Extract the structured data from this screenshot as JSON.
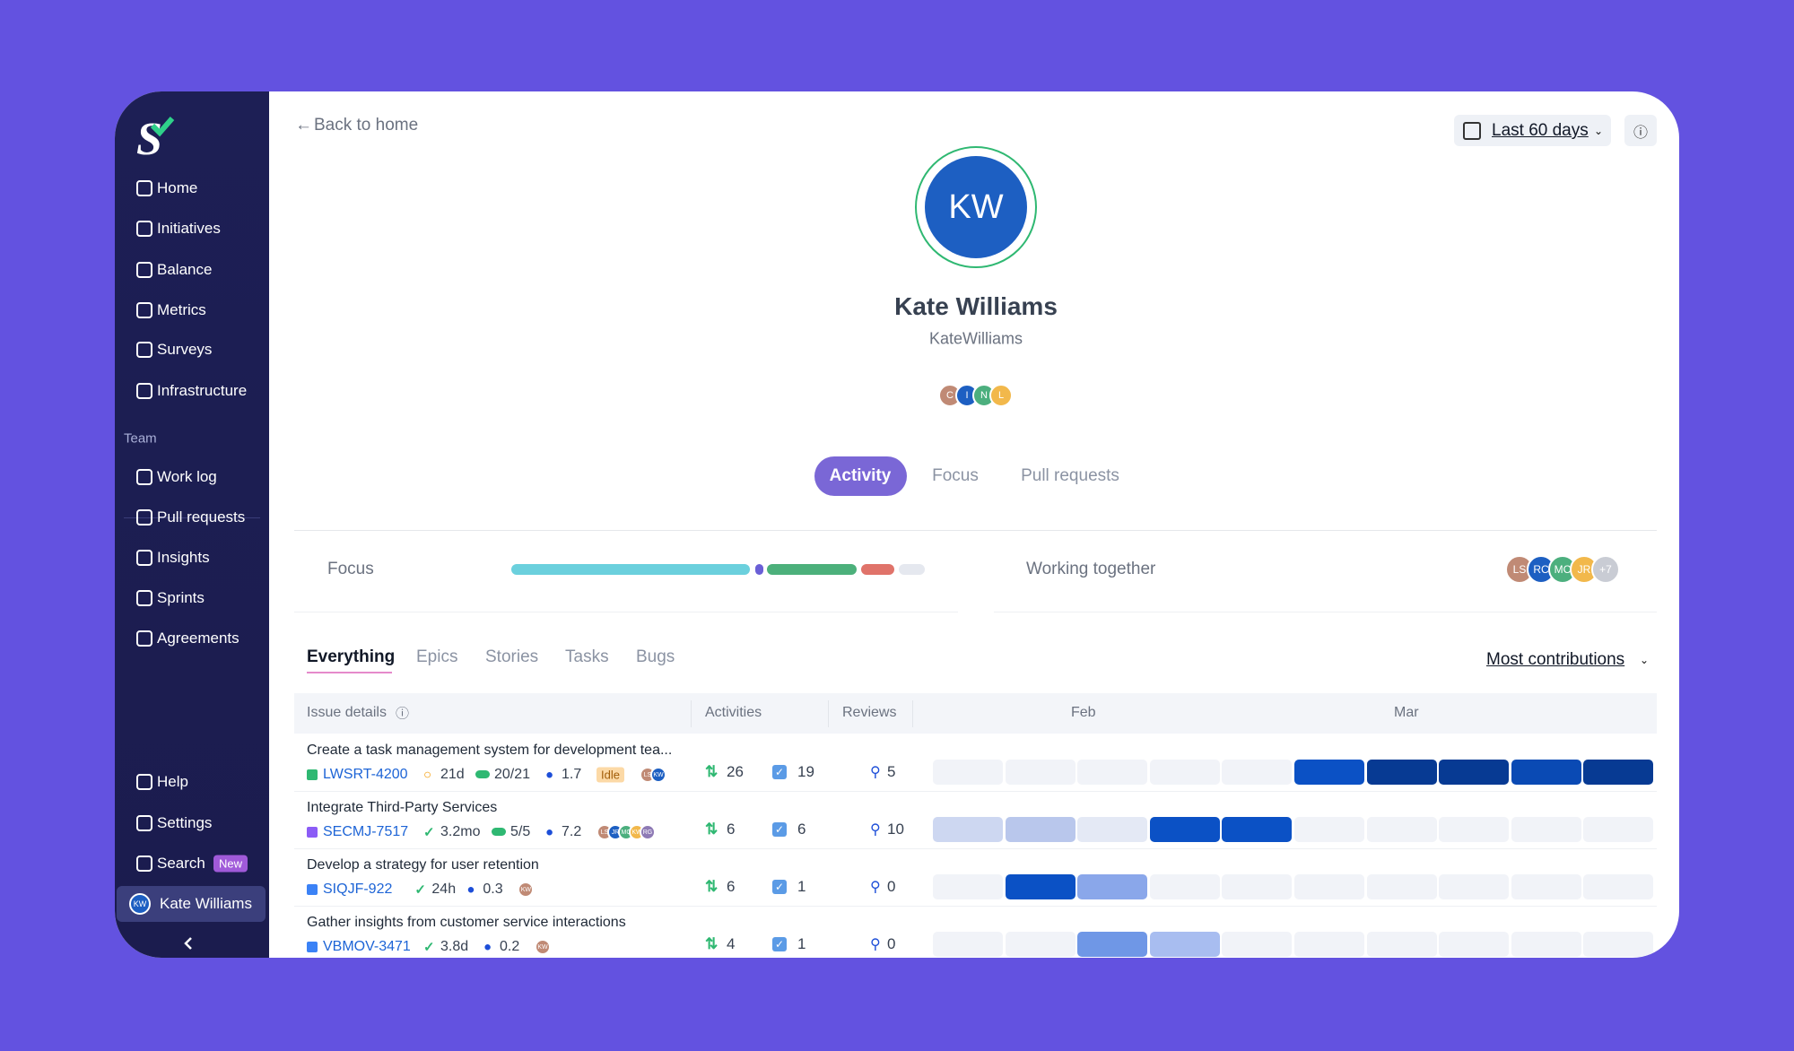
{
  "sidebar": {
    "nav": [
      "Home",
      "Initiatives",
      "Balance",
      "Metrics",
      "Surveys",
      "Infrastructure"
    ],
    "team_label": "Team",
    "team": [
      "Work log",
      "Pull requests",
      "Insights",
      "Sprints",
      "Agreements"
    ],
    "bottom": [
      "Help",
      "Settings",
      "Search"
    ],
    "search_badge": "New",
    "user": "Kate Williams",
    "user_initials": "KW"
  },
  "header": {
    "back": "Back to home",
    "date_range": "Last 60 days"
  },
  "profile": {
    "initials": "KW",
    "name": "Kate Williams",
    "username": "KateWilliams",
    "teams": [
      "C",
      "I",
      "N",
      "L"
    ]
  },
  "tabs": [
    "Activity",
    "Focus",
    "Pull requests"
  ],
  "focus_label": "Focus",
  "working_together": {
    "label": "Working together",
    "people": [
      "LS",
      "RC",
      "MC",
      "JR"
    ],
    "more": "+7"
  },
  "issue_tabs": [
    "Everything",
    "Epics",
    "Stories",
    "Tasks",
    "Bugs"
  ],
  "sort": "Most contributions",
  "table": {
    "headers": [
      "Issue details",
      "Activities",
      "Reviews"
    ],
    "months": [
      "Feb",
      "Mar"
    ],
    "rows": [
      {
        "title": "Create a task management system for development tea...",
        "key": "LWSRT-4200",
        "age": "21d",
        "progress": "20/21",
        "score": 1.7,
        "badge": "Idle",
        "avatars": [
          "LS",
          "KW"
        ],
        "prs": 26,
        "tasks": 19,
        "reviews": 5
      },
      {
        "title": "Integrate Third-Party Services",
        "key": "SECMJ-7517",
        "age": "3.2mo",
        "progress": "5/5",
        "score": 7.2,
        "avatars": [
          "LS",
          "JR",
          "MC",
          "KW",
          "RG"
        ],
        "prs": 6,
        "tasks": 6,
        "reviews": 10
      },
      {
        "title": "Develop a strategy for user retention",
        "key": "SIQJF-922",
        "age": "24h",
        "score": 0.3,
        "avatars": [
          "KW"
        ],
        "prs": 6,
        "tasks": 1,
        "reviews": 0
      },
      {
        "title": "Gather insights from customer service interactions",
        "key": "VBMOV-3471",
        "age": "3.8d",
        "score": 0.2,
        "avatars": [
          "KW"
        ],
        "prs": 4,
        "tasks": 1,
        "reviews": 0
      }
    ]
  }
}
